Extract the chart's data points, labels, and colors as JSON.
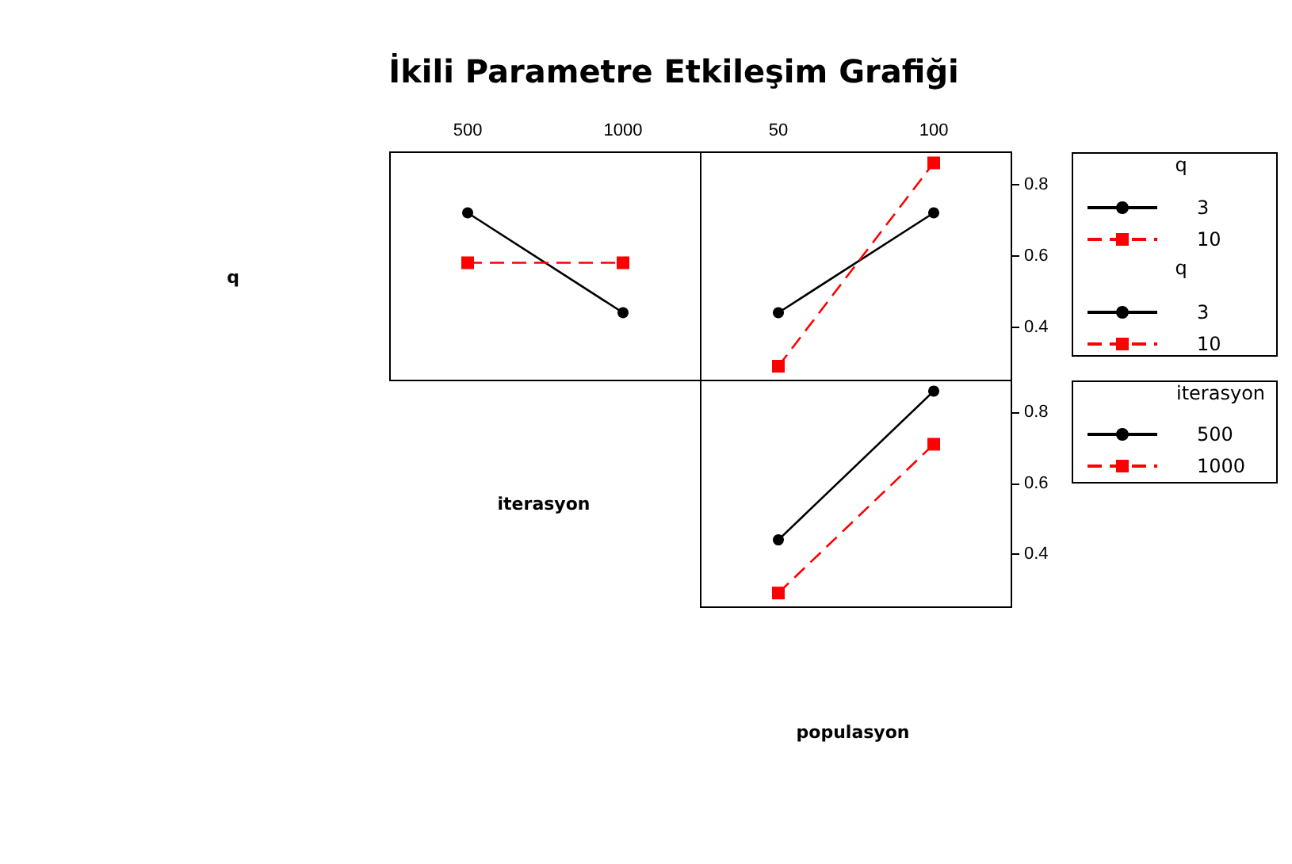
{
  "chart_data": [
    {
      "type": "line",
      "title": "İkili Parametre Etkileşim Grafiği",
      "ylabel": "q",
      "xlabel": "iterasyon",
      "legend_title": "q",
      "categories": [
        "500",
        "1000"
      ],
      "ylim": [
        0.25,
        0.89
      ],
      "yticks": [
        0.4,
        0.6,
        0.8
      ],
      "tick_labels": "x",
      "legend": "right",
      "series": [
        {
          "name": "3",
          "color": "#000000",
          "marker": "circle",
          "line_style": "solid",
          "values": [
            0.72,
            0.44
          ]
        },
        {
          "name": "10",
          "color": "#ff0000",
          "marker": "square",
          "line_style": "dashed",
          "values": [
            0.58,
            0.58
          ]
        }
      ]
    },
    {
      "type": "line",
      "xlabel": "populasyon",
      "legend_title": "q",
      "categories": [
        "50",
        "100"
      ],
      "ylim": [
        0.25,
        0.89
      ],
      "yticks": [
        0.4,
        0.6,
        0.8
      ],
      "legend": "right",
      "series": [
        {
          "name": "3",
          "color": "#000000",
          "marker": "circle",
          "line_style": "solid",
          "values": [
            0.44,
            0.72
          ]
        },
        {
          "name": "10",
          "color": "#ff0000",
          "marker": "square",
          "line_style": "dashed",
          "values": [
            0.29,
            0.86
          ]
        }
      ]
    },
    {
      "type": "line",
      "legend_title": "iterasyon",
      "categories": [
        "50",
        "100"
      ],
      "ylim": [
        0.25,
        0.89
      ],
      "yticks": [
        0.4,
        0.6,
        0.8
      ],
      "tick_labels": "y",
      "legend": "right",
      "series": [
        {
          "name": "500",
          "color": "#000000",
          "marker": "circle",
          "line_style": "solid",
          "values": [
            0.44,
            0.86
          ]
        },
        {
          "name": "1000",
          "color": "#ff0000",
          "marker": "square",
          "line_style": "dashed",
          "values": [
            0.29,
            0.71
          ]
        }
      ]
    }
  ]
}
